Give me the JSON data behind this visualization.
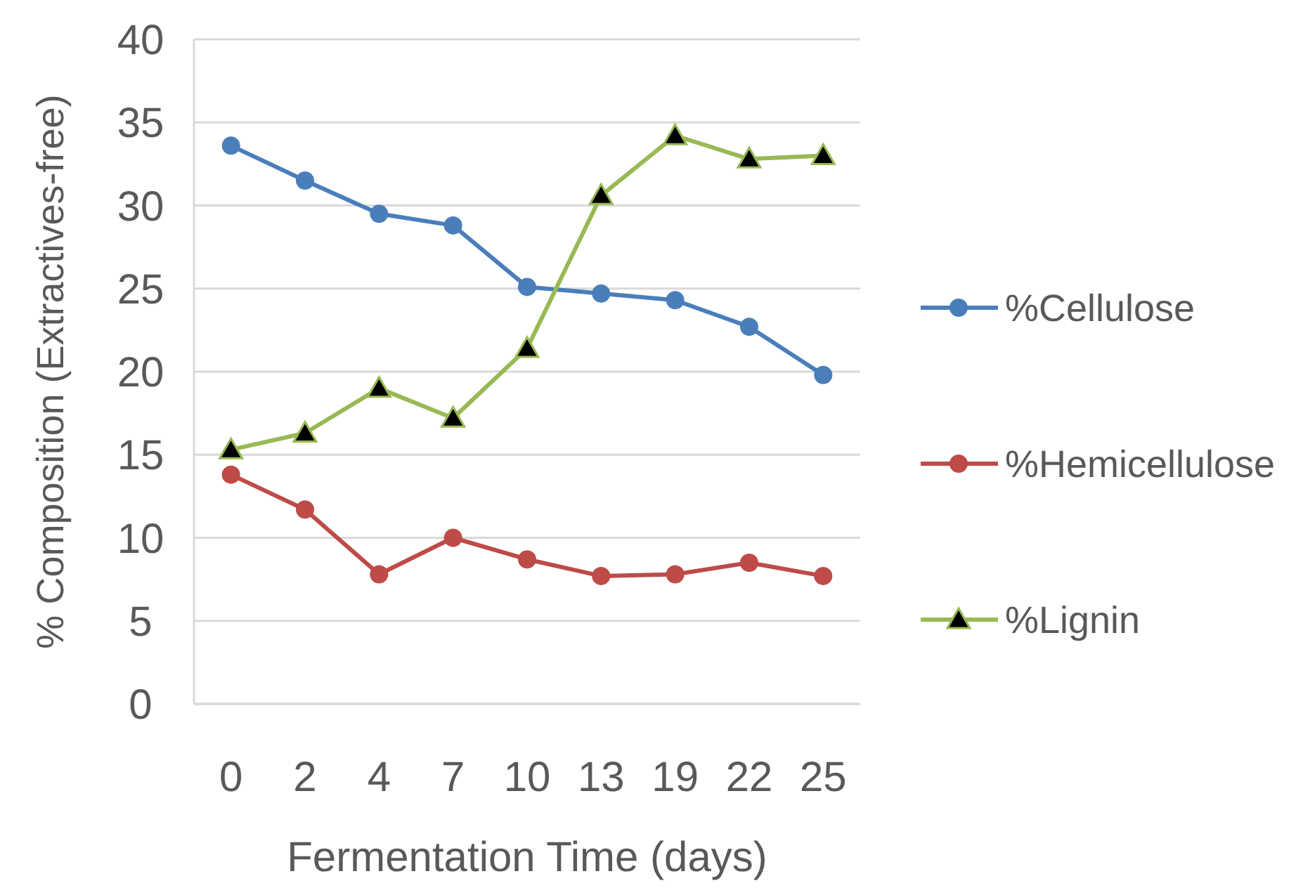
{
  "chart_data": {
    "type": "line",
    "xlabel": "Fermentation Time (days)",
    "ylabel": "% Composition (Extractives-free)",
    "categories": [
      "0",
      "2",
      "4",
      "7",
      "10",
      "13",
      "19",
      "22",
      "25"
    ],
    "series": [
      {
        "name": "%Cellulose",
        "color": "#4a7ebb",
        "marker": "circle",
        "values": [
          33.6,
          31.5,
          29.5,
          28.8,
          25.1,
          24.7,
          24.3,
          22.7,
          19.8
        ]
      },
      {
        "name": "%Hemicellulose",
        "color": "#be4b48",
        "marker": "circle",
        "values": [
          13.8,
          11.7,
          7.8,
          10.0,
          8.7,
          7.7,
          7.8,
          8.5,
          7.7
        ]
      },
      {
        "name": "%Lignin",
        "color": "#98b954",
        "marker": "triangle",
        "values": [
          15.3,
          16.3,
          19.0,
          17.2,
          21.4,
          30.6,
          34.2,
          32.8,
          33.0
        ]
      }
    ],
    "ylim": [
      0,
      40
    ],
    "yticks": [
      0,
      5,
      10,
      15,
      20,
      25,
      30,
      35,
      40
    ],
    "grid": "y",
    "legend": "right",
    "line_style": "solid"
  }
}
